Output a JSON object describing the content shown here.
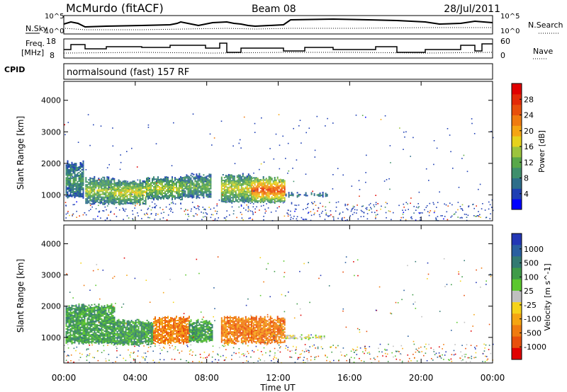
{
  "header": {
    "station": "McMurdo (fitACF)",
    "beam": "Beam 08",
    "date": "28/Jul/2011"
  },
  "noise_panel": {
    "left_label": "N.Sky",
    "right_label": "N.Search",
    "left_ticks": [
      "10^5",
      "10^0"
    ],
    "right_ticks": [
      "10^5",
      "10^0"
    ]
  },
  "freq_panel": {
    "left_label_1": "Freq.",
    "left_label_2": "[MHz]",
    "left_ticks": [
      "18",
      "8"
    ],
    "right_label": "Nave",
    "right_ticks": [
      "60",
      "0"
    ]
  },
  "cpid": {
    "label": "CPID",
    "program": "normalsound (fast) 157 RF"
  },
  "axes": {
    "ylabel": "Slant Range [km]",
    "xlabel": "Time UT",
    "y_ticks": [
      "1000",
      "2000",
      "3000",
      "4000"
    ],
    "x_ticks": [
      "00:00",
      "04:00",
      "08:00",
      "12:00",
      "16:00",
      "20:00",
      "00:00"
    ]
  },
  "power_scale": {
    "label": "Power [dB]",
    "ticks": [
      "4",
      "8",
      "12",
      "16",
      "20",
      "24",
      "28"
    ],
    "colors": [
      "#0000ff",
      "#1e3fb4",
      "#2e6e8a",
      "#3f8f6c",
      "#59a84a",
      "#9cc43d",
      "#e6d21c",
      "#f5a512",
      "#f07b10",
      "#e84f0c",
      "#e32a08",
      "#e00000"
    ]
  },
  "velocity_scale": {
    "label": "Velocity [m s^-1]",
    "ticks": [
      "1000",
      "500",
      "100",
      "25",
      "-25",
      "-100",
      "-500",
      "-1000"
    ],
    "colors": [
      "#2337b5",
      "#2a5fa0",
      "#337a72",
      "#3f9b48",
      "#5cc72e",
      "#bfbfbf",
      "#f5d31a",
      "#f5a512",
      "#f07b10",
      "#e84f0c",
      "#e00000"
    ]
  },
  "chart_data": {
    "type": "heatmap",
    "x_range_hours": [
      0,
      24
    ],
    "y_range_km": [
      180,
      4600
    ],
    "power_patches": [
      {
        "t": [
          0.1,
          1.1
        ],
        "r": [
          900,
          2100
        ],
        "level": 8
      },
      {
        "t": [
          1.2,
          2.8
        ],
        "r": [
          700,
          1600
        ],
        "level": 12
      },
      {
        "t": [
          2.8,
          4.6
        ],
        "r": [
          700,
          1500
        ],
        "level": 14
      },
      {
        "t": [
          4.6,
          6.6
        ],
        "r": [
          850,
          1600
        ],
        "level": 13
      },
      {
        "t": [
          6.6,
          8.2
        ],
        "r": [
          900,
          1700
        ],
        "level": 10
      },
      {
        "t": [
          8.8,
          10.5
        ],
        "r": [
          750,
          1700
        ],
        "level": 14
      },
      {
        "t": [
          10.5,
          12.4
        ],
        "r": [
          750,
          1600
        ],
        "level": 22
      },
      {
        "t": [
          12.4,
          14.8
        ],
        "r": [
          950,
          1100
        ],
        "level": 6
      }
    ],
    "velocity_patches": [
      {
        "t": [
          0.1,
          2.8
        ],
        "r": [
          800,
          2100
        ],
        "v": 100
      },
      {
        "t": [
          2.8,
          5.0
        ],
        "r": [
          750,
          1600
        ],
        "v": 100
      },
      {
        "t": [
          5.0,
          7.0
        ],
        "r": [
          800,
          1700
        ],
        "v": -100
      },
      {
        "t": [
          7.0,
          8.3
        ],
        "r": [
          850,
          1600
        ],
        "v": 100
      },
      {
        "t": [
          8.8,
          10.5
        ],
        "r": [
          800,
          1700
        ],
        "v": -100
      },
      {
        "t": [
          10.5,
          12.4
        ],
        "r": [
          800,
          1700
        ],
        "v": -100
      },
      {
        "t": [
          12.4,
          14.8
        ],
        "r": [
          950,
          1100
        ],
        "v": -25
      }
    ]
  }
}
